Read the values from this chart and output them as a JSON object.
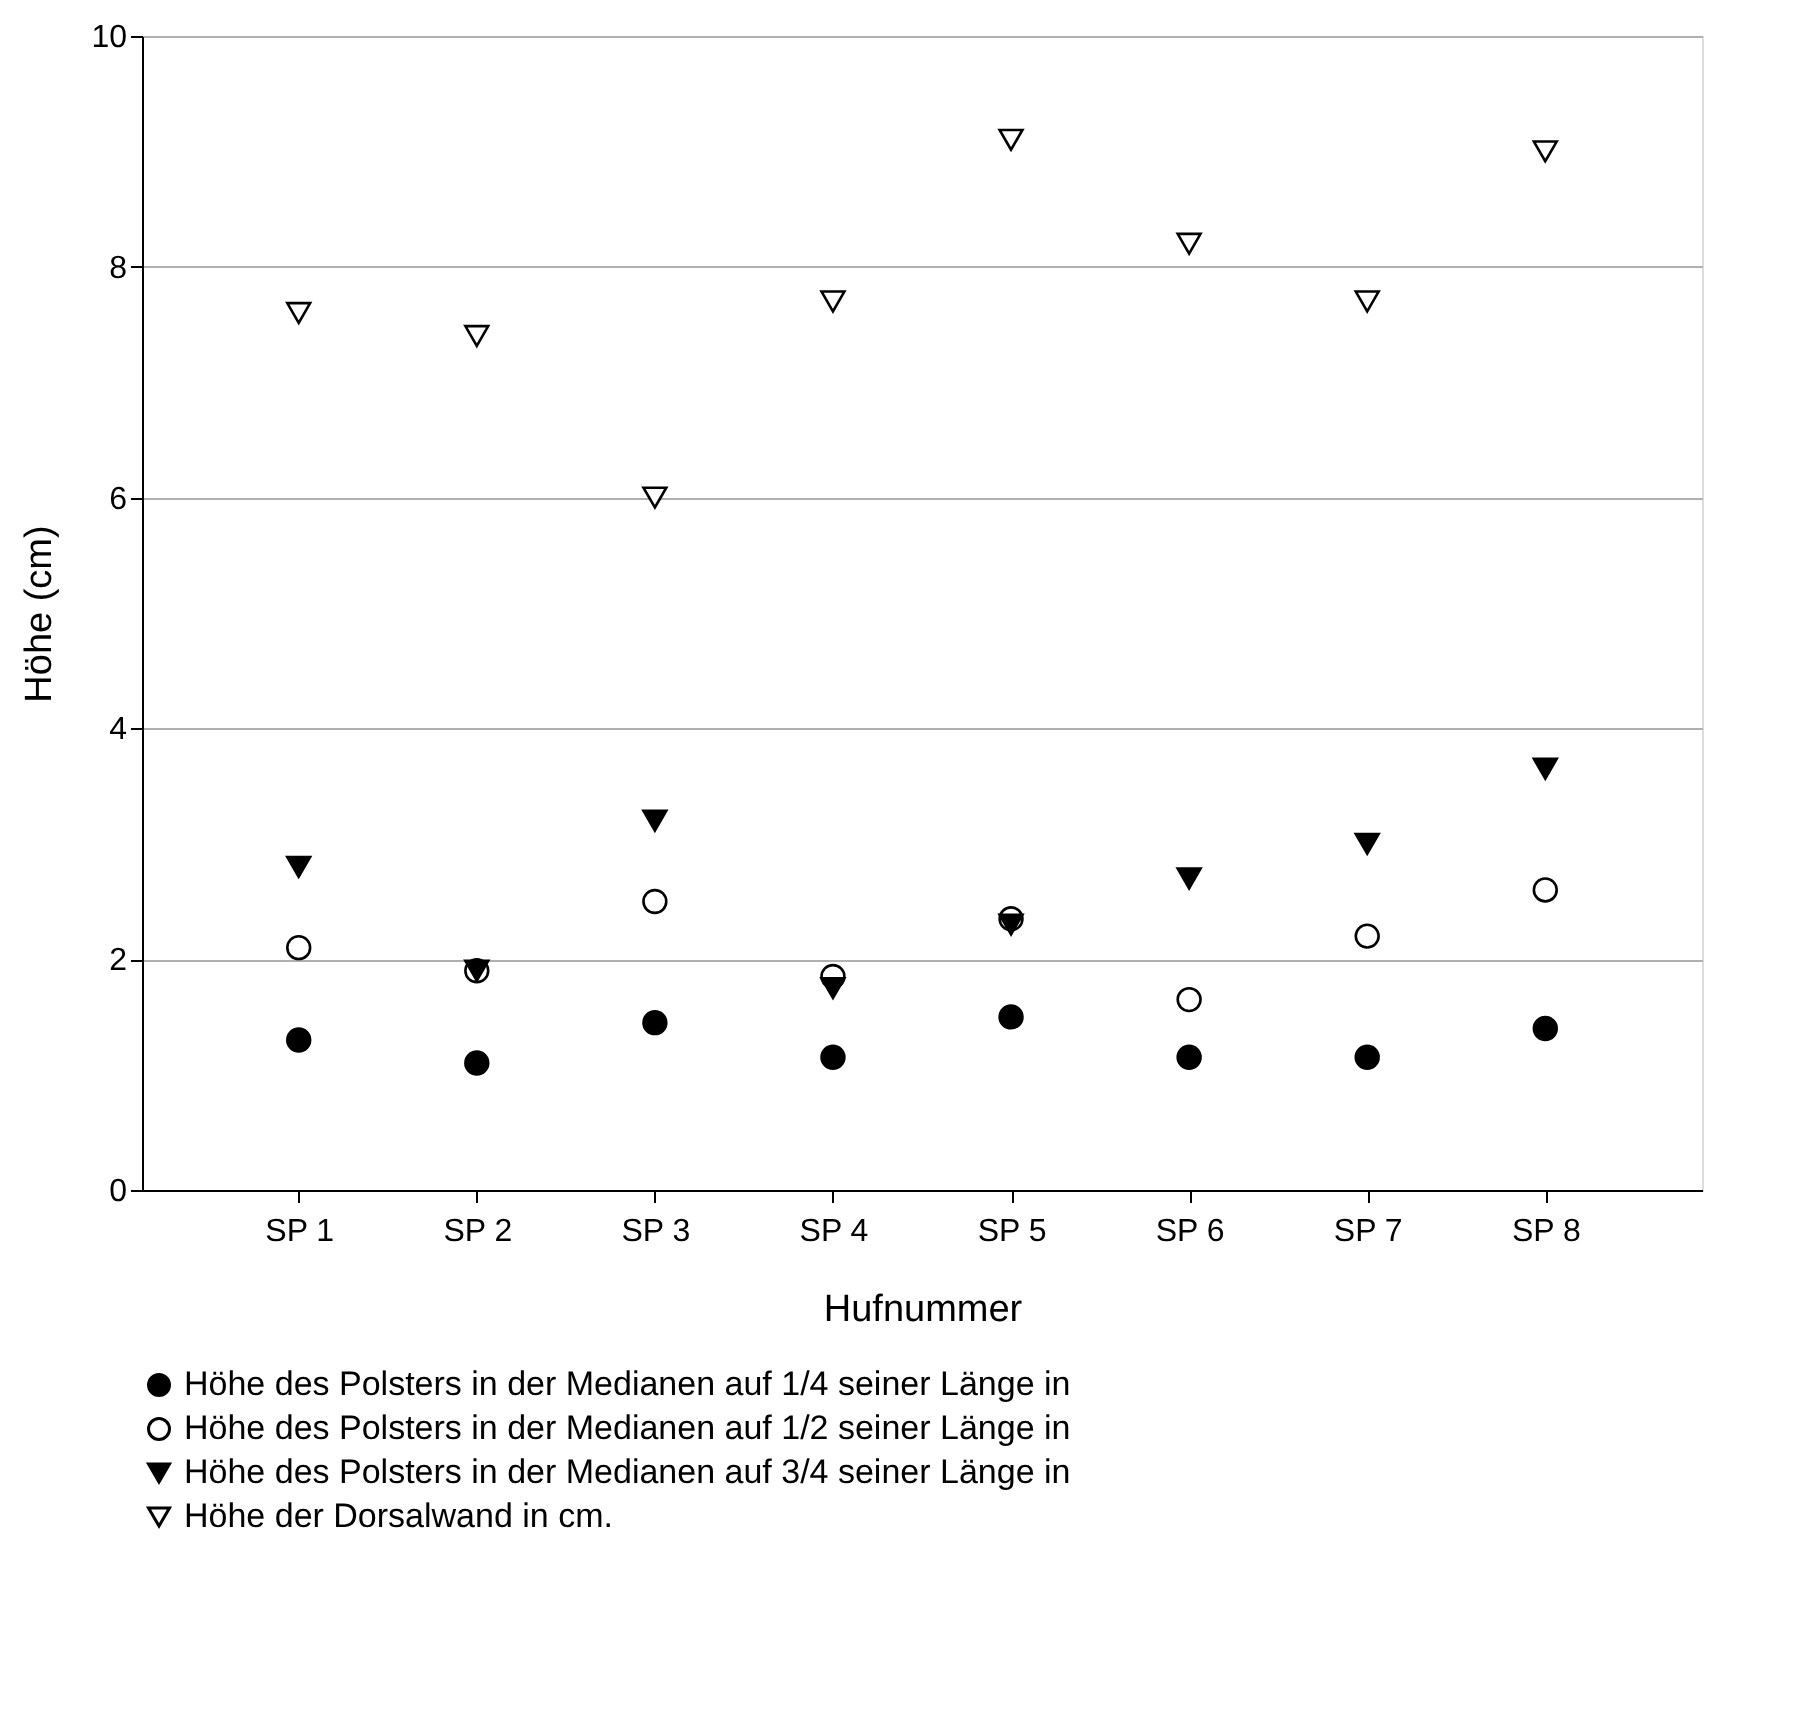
{
  "chart_data": {
    "type": "scatter",
    "xlabel": "Hufnummer",
    "ylabel": "Höhe (cm)",
    "categories": [
      "SP 1",
      "SP 2",
      "SP 3",
      "SP 4",
      "SP 5",
      "SP 6",
      "SP 7",
      "SP 8"
    ],
    "series": [
      {
        "name": "Höhe des Polsters in der Medianen auf 1/4 seiner Länge in",
        "color": "#000000",
        "marker": "circle",
        "values": [
          1.3,
          1.1,
          1.45,
          1.15,
          1.5,
          1.15,
          1.15,
          1.4
        ]
      },
      {
        "name": "Höhe des Polsters in der Medianen auf 1/2 seiner Länge in",
        "color": "#000000",
        "marker": "circle",
        "values": [
          2.1,
          1.9,
          2.5,
          1.85,
          2.35,
          1.65,
          2.2,
          2.6
        ]
      },
      {
        "name": "Höhe des Polsters in der Medianen auf 3/4 seiner Länge in",
        "color": "#000000",
        "marker": "triangle",
        "values": [
          2.8,
          1.9,
          3.2,
          1.75,
          2.3,
          2.7,
          3.0,
          3.65
        ]
      },
      {
        "name": "Höhe der Dorsalwand in cm.",
        "color": "#000000",
        "marker": "triangle",
        "values": [
          7.6,
          7.4,
          6.0,
          7.7,
          9.1,
          8.2,
          7.7,
          9.0
        ]
      }
    ],
    "ylim": [
      0,
      10
    ],
    "yticks": [
      0,
      2,
      4,
      6,
      8,
      10
    ],
    "grid": "y",
    "legend": "bottom"
  }
}
